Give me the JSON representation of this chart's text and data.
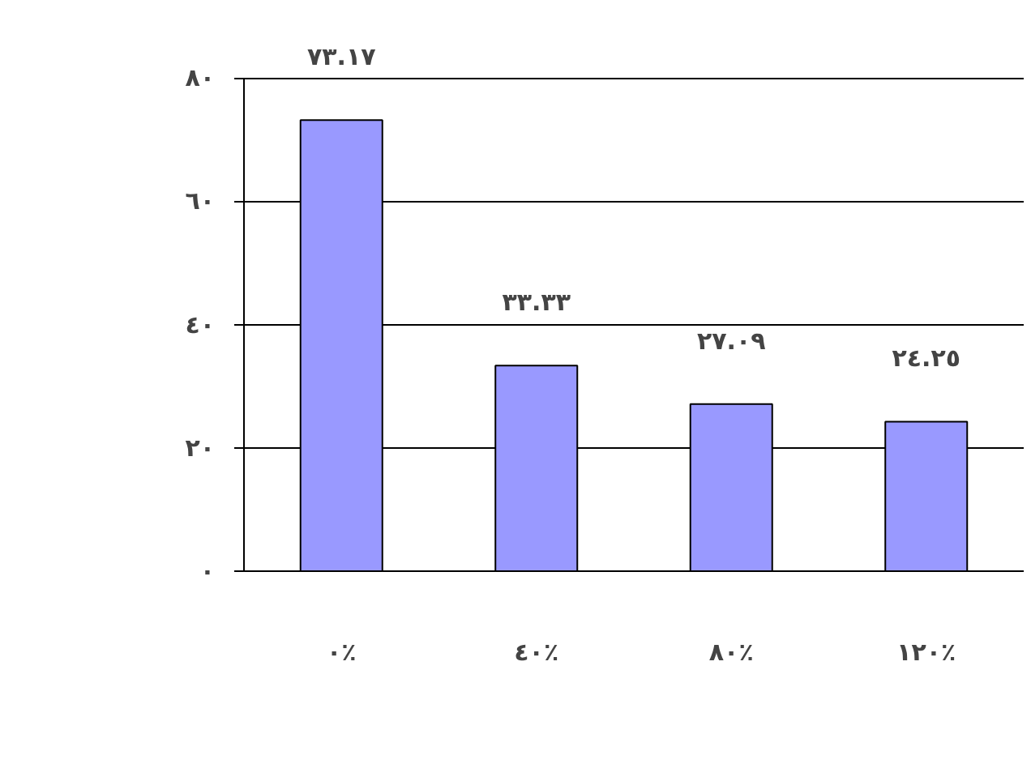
{
  "chart_data": {
    "type": "bar",
    "categories": [
      "٠٪",
      "٤٠٪",
      "٨٠٪",
      "١٢٠٪"
    ],
    "values": [
      73.17,
      33.33,
      27.09,
      24.25
    ],
    "value_labels": [
      "٧٣.١٧",
      "٣٣.٣٣",
      "٢٧.٠٩",
      "٢٤.٢٥"
    ],
    "color": "#9999ff",
    "ylim": [
      0,
      80
    ],
    "yticks": [
      {
        "value": 0,
        "label": "٠"
      },
      {
        "value": 20,
        "label": "٢٠"
      },
      {
        "value": 40,
        "label": "٤٠"
      },
      {
        "value": 60,
        "label": "٦٠"
      },
      {
        "value": 80,
        "label": "٨٠"
      }
    ],
    "grid": "y"
  }
}
